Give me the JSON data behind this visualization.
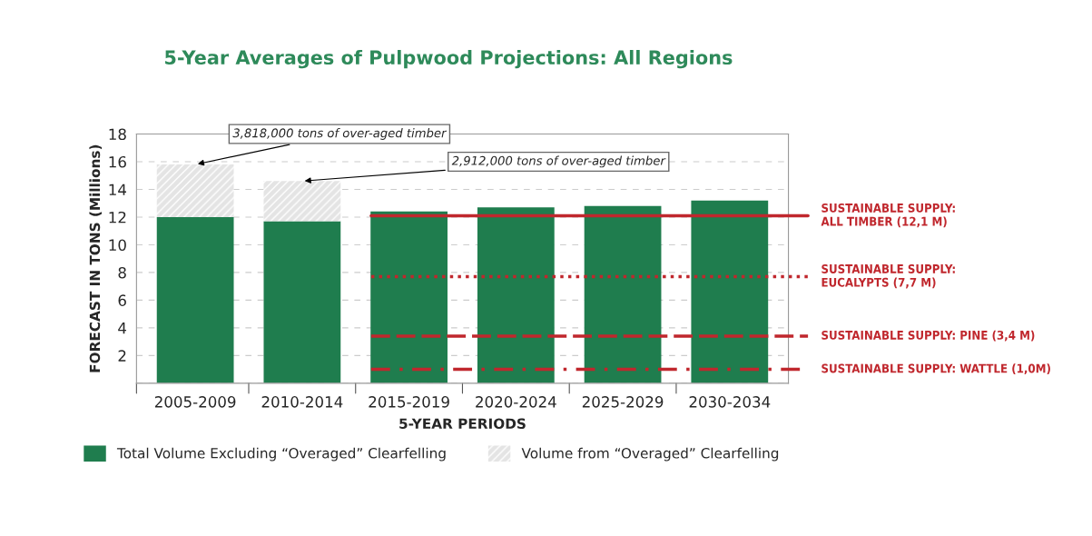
{
  "chart_data": {
    "type": "bar",
    "title": "5-Year Averages of Pulpwood Projections: All Regions",
    "xlabel": "5-YEAR PERIODS",
    "ylabel": "FORECAST IN TONS (Millions)",
    "categories": [
      "2005-2009",
      "2010-2014",
      "2015-2019",
      "2020-2024",
      "2025-2029",
      "2030-2034"
    ],
    "stacked": true,
    "series": [
      {
        "name": "Total Volume Excluding “Overaged” Clearfelling",
        "color": "#1f7d4e",
        "values": [
          12.0,
          11.7,
          12.4,
          12.7,
          12.8,
          13.2
        ]
      },
      {
        "name": "Volume from “Overaged” Clearfelling",
        "color": "#e4e4e4",
        "values": [
          3.8,
          2.9,
          null,
          null,
          null,
          null
        ]
      }
    ],
    "ylim": [
      0,
      18
    ],
    "yticks": [
      {
        "value": 0,
        "label": null
      },
      2,
      4,
      6,
      8,
      10,
      12,
      14,
      16,
      18
    ],
    "grid": "y",
    "legend": "bottom",
    "annotations": [
      {
        "text": "3,818,000 tons of over-aged timber",
        "x": "2005-2009",
        "y": 15.8
      },
      {
        "text": "2,912,000 tons of over-aged timber",
        "x": "2010-2014",
        "y": 14.6
      }
    ],
    "ref_lines": [
      {
        "axis": "y",
        "value": 12.1,
        "label": "SUSTAINABLE SUPPLY:\nALL TIMBER (12,1 M)",
        "color": "#c0272d",
        "line_style": "solid"
      },
      {
        "axis": "y",
        "value": 7.7,
        "label": "SUSTAINABLE SUPPLY:\nEUCALYPTS (7,7 M)",
        "color": "#c0272d",
        "line_style": "dotted"
      },
      {
        "axis": "y",
        "value": 3.4,
        "label": "SUSTAINABLE SUPPLY: PINE (3,4 M)",
        "color": "#c0272d",
        "line_style": "dashed"
      },
      {
        "axis": "y",
        "value": 1.0,
        "label": "SUSTAINABLE SUPPLY: WATTLE (1,0M)",
        "color": "#c0272d",
        "line_style": "dashdot"
      }
    ]
  }
}
